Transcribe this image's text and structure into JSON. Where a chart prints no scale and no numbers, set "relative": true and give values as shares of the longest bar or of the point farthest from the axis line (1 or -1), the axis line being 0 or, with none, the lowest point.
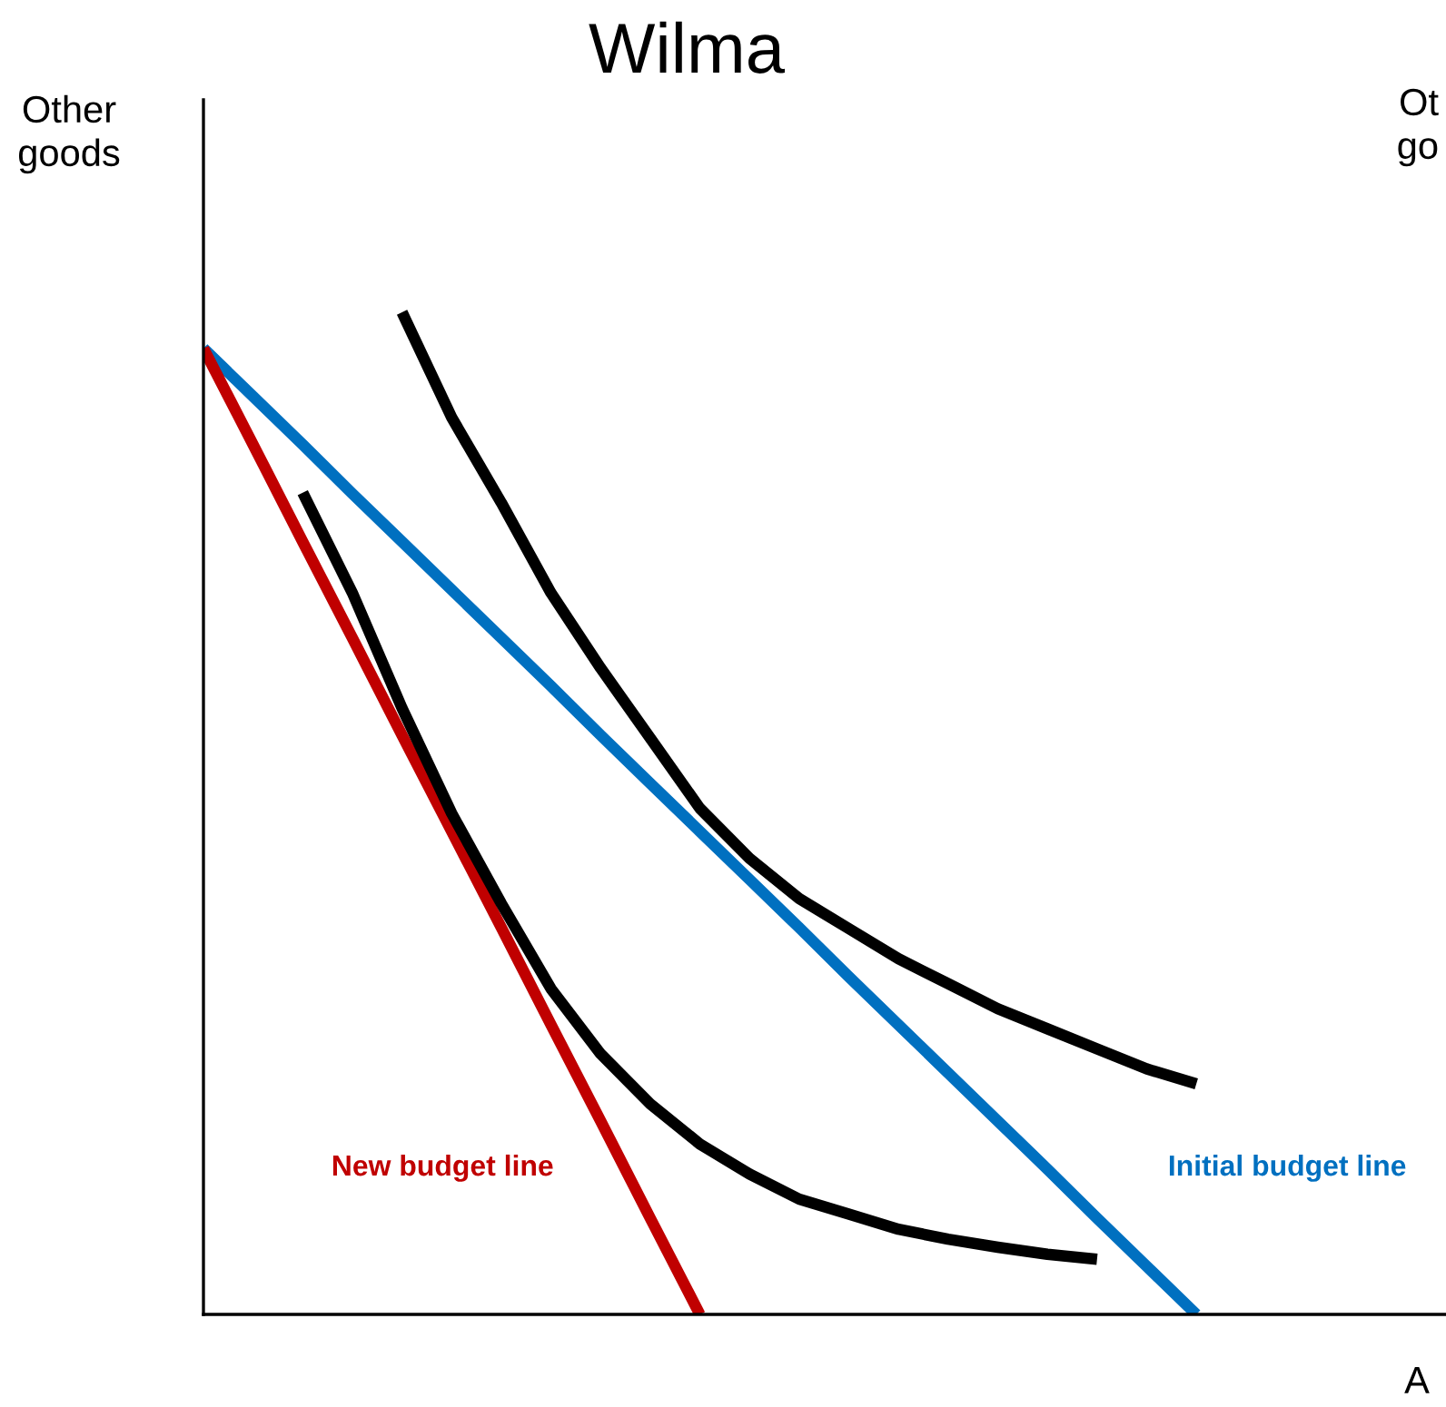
{
  "chart_data": {
    "type": "line",
    "title": "Wilma",
    "ylabel": "Other goods",
    "relative": true,
    "legend": false,
    "marker": "none",
    "line_style": "solid",
    "annotations": [
      "Ot\ngo",
      "A"
    ],
    "categories": [
      null,
      null,
      null,
      null,
      null,
      null,
      null,
      null,
      null,
      null,
      null,
      null,
      null,
      null,
      null,
      null,
      null,
      null,
      null,
      null,
      null
    ],
    "series": [
      {
        "name": "Initial budget line",
        "color": "#0070c0",
        "values": [
          0.964,
          0.916,
          0.868,
          0.819,
          0.771,
          0.723,
          0.675,
          0.627,
          0.578,
          0.53,
          0.482,
          0.434,
          0.386,
          0.337,
          0.289,
          0.241,
          0.193,
          0.145,
          0.096,
          0.048,
          0
        ]
      },
      {
        "name": "New budget line",
        "color": "#c00000",
        "values": [
          0.964,
          0.868,
          0.771,
          0.675,
          0.578,
          0.482,
          0.386,
          0.289,
          0.193,
          0.096,
          0,
          null,
          null,
          null,
          null,
          null,
          null,
          null,
          null,
          null,
          null
        ]
      },
      {
        "color": "#000000",
        "values": [
          null,
          null,
          null,
          null,
          1,
          0.895,
          0.81,
          0.72,
          0.645,
          0.575,
          0.505,
          0.455,
          0.415,
          0.385,
          0.355,
          0.33,
          0.305,
          0.285,
          0.265,
          0.245,
          0.23
        ]
      },
      {
        "color": "#000000",
        "values": [
          null,
          null,
          0.82,
          0.72,
          0.605,
          0.5,
          0.41,
          0.325,
          0.26,
          0.21,
          0.17,
          0.14,
          0.115,
          0.1,
          0.085,
          0.075,
          0.067,
          0.06,
          0.055,
          null,
          null
        ]
      }
    ]
  }
}
